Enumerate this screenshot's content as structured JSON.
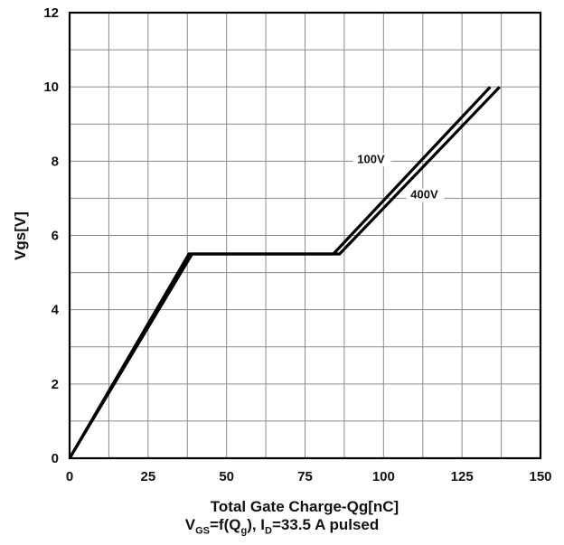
{
  "chart_data": {
    "type": "line",
    "xlabel": "Total Gate Charge-Qg[nC]",
    "ylabel": "Vgs[V]",
    "xlim": [
      0,
      150
    ],
    "ylim": [
      0,
      12
    ],
    "x_ticks": [
      "0",
      "25",
      "50",
      "75",
      "100",
      "125",
      "150"
    ],
    "y_ticks": [
      "0",
      "2",
      "4",
      "6",
      "8",
      "10",
      "12"
    ],
    "grid": true,
    "series": [
      {
        "name": "100V",
        "x": [
          0,
          38,
          84,
          134
        ],
        "y": [
          0,
          5.5,
          5.5,
          10
        ]
      },
      {
        "name": "400V",
        "x": [
          0,
          39,
          86,
          137
        ],
        "y": [
          0,
          5.5,
          5.5,
          10
        ]
      }
    ],
    "caption": {
      "v": "V",
      "v_sub": "GS",
      "f": "=f(Q",
      "q_sub": "g",
      "i": "), I",
      "i_sub": "D",
      "rest": "=33.5 A  pulsed"
    }
  }
}
